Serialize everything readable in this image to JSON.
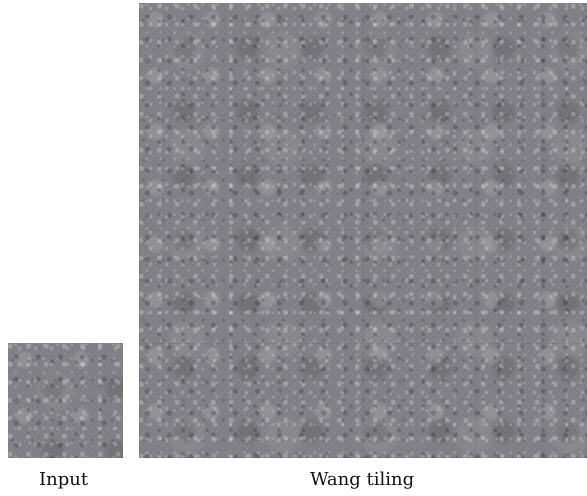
{
  "captions": {
    "input": "Input",
    "wang_tiling": "Wang tiling"
  }
}
